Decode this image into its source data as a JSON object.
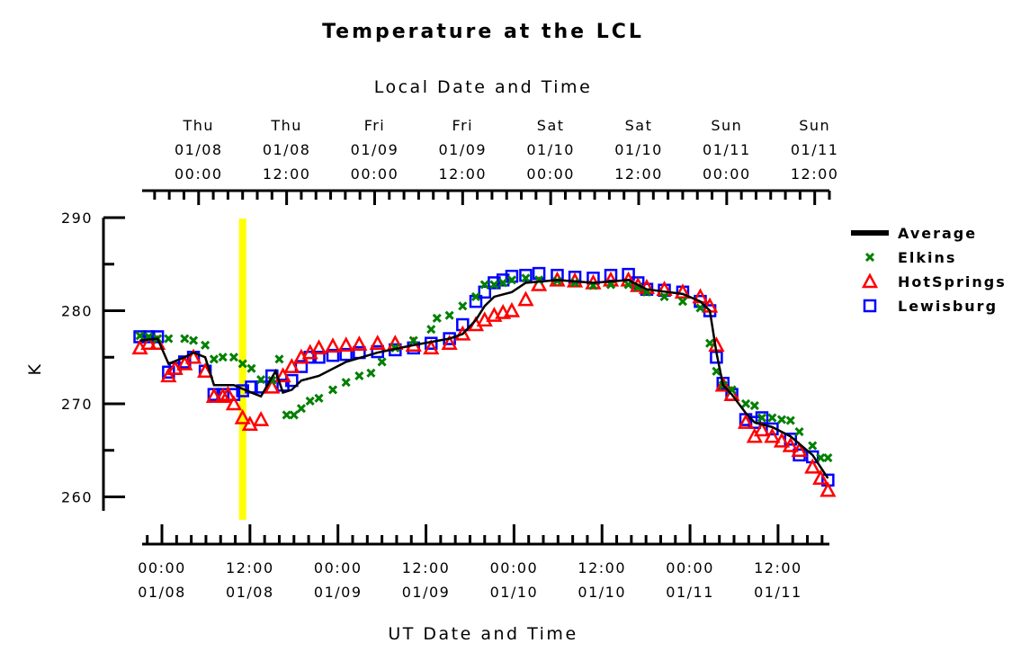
{
  "chart_data": {
    "type": "line",
    "title": "Temperature at the LCL",
    "xlabel": "UT Date and Time",
    "top_xlabel": "Local Date and Time",
    "ylabel": "K",
    "x_units": "hours since 01/08 00:00 UT",
    "xlim": [
      -2.7,
      91
    ],
    "ylim": [
      258.5,
      290
    ],
    "yticks": [
      260,
      270,
      280,
      290
    ],
    "ytick_labels": [
      "260",
      "270",
      "280",
      "290"
    ],
    "bottom_ticks": [
      {
        "x": 0,
        "time": "00:00",
        "date": "01/08"
      },
      {
        "x": 12,
        "time": "12:00",
        "date": "01/08"
      },
      {
        "x": 24,
        "time": "00:00",
        "date": "01/09"
      },
      {
        "x": 36,
        "time": "12:00",
        "date": "01/09"
      },
      {
        "x": 48,
        "time": "00:00",
        "date": "01/10"
      },
      {
        "x": 60,
        "time": "12:00",
        "date": "01/10"
      },
      {
        "x": 72,
        "time": "00:00",
        "date": "01/11"
      },
      {
        "x": 84,
        "time": "12:00",
        "date": "01/11"
      }
    ],
    "top_ticks": [
      {
        "x": 5,
        "day": "Thu",
        "date": "01/08",
        "time": "00:00"
      },
      {
        "x": 17,
        "day": "Thu",
        "date": "01/08",
        "time": "12:00"
      },
      {
        "x": 29,
        "day": "Fri",
        "date": "01/09",
        "time": "00:00"
      },
      {
        "x": 41,
        "day": "Fri",
        "date": "01/09",
        "time": "12:00"
      },
      {
        "x": 53,
        "day": "Sat",
        "date": "01/10",
        "time": "00:00"
      },
      {
        "x": 65,
        "day": "Sat",
        "date": "01/10",
        "time": "12:00"
      },
      {
        "x": 77,
        "day": "Sun",
        "date": "01/11",
        "time": "00:00"
      },
      {
        "x": 89,
        "day": "Sun",
        "date": "01/11",
        "time": "12:00"
      }
    ],
    "highlight_x": 11,
    "highlight_color": "#ffff00",
    "legend_position": "right",
    "series": [
      {
        "name": "Average",
        "marker": "line",
        "color": "#000000",
        "points": [
          [
            -3,
            276.8
          ],
          [
            -0.6,
            277
          ],
          [
            0.9,
            274.3
          ],
          [
            3.1,
            275
          ],
          [
            4.3,
            275.5
          ],
          [
            5.9,
            275
          ],
          [
            7.1,
            272
          ],
          [
            9.8,
            272
          ],
          [
            12.2,
            271.2
          ],
          [
            13.5,
            270.8
          ],
          [
            15.5,
            273.5
          ],
          [
            16.5,
            271.2
          ],
          [
            17.7,
            271.5
          ],
          [
            19,
            272.5
          ],
          [
            21.4,
            273
          ],
          [
            25.1,
            274.5
          ],
          [
            29.4,
            275.5
          ],
          [
            34.3,
            276.3
          ],
          [
            39.2,
            277
          ],
          [
            41,
            277.5
          ],
          [
            42.8,
            279
          ],
          [
            44,
            280.5
          ],
          [
            45.3,
            281.5
          ],
          [
            47.7,
            282
          ],
          [
            49.6,
            283
          ],
          [
            53.9,
            283.3
          ],
          [
            58.8,
            283
          ],
          [
            63.6,
            283.3
          ],
          [
            66.1,
            282.3
          ],
          [
            71,
            281.8
          ],
          [
            73.4,
            281
          ],
          [
            74.7,
            280
          ],
          [
            75.6,
            275.5
          ],
          [
            76.5,
            272
          ],
          [
            77.7,
            271
          ],
          [
            79.6,
            269
          ],
          [
            80.8,
            268
          ],
          [
            83.2,
            267.5
          ],
          [
            85.7,
            266.5
          ],
          [
            88.7,
            264.5
          ],
          [
            90.8,
            262
          ]
        ]
      },
      {
        "name": "Elkins",
        "marker": "x",
        "color": "#008000",
        "points": [
          [
            -3,
            277.3
          ],
          [
            -1.8,
            277.2
          ],
          [
            -0.6,
            277
          ],
          [
            0.9,
            277
          ],
          [
            3.1,
            277
          ],
          [
            4.3,
            276.8
          ],
          [
            5.9,
            276.3
          ],
          [
            7.1,
            274.8
          ],
          [
            8.3,
            275
          ],
          [
            9.8,
            275
          ],
          [
            11,
            274.3
          ],
          [
            12.2,
            273.8
          ],
          [
            13.5,
            272.6
          ],
          [
            15,
            272.5
          ],
          [
            16,
            274.8
          ],
          [
            17,
            268.8
          ],
          [
            18,
            268.8
          ],
          [
            19,
            269.5
          ],
          [
            20.2,
            270.3
          ],
          [
            21.4,
            270.6
          ],
          [
            23.3,
            271.5
          ],
          [
            25.1,
            272.3
          ],
          [
            26.9,
            273
          ],
          [
            28.5,
            273.3
          ],
          [
            30,
            274.5
          ],
          [
            31.8,
            276
          ],
          [
            34.3,
            276.8
          ],
          [
            36.7,
            278
          ],
          [
            37.5,
            279.2
          ],
          [
            39.2,
            279.5
          ],
          [
            41,
            280.5
          ],
          [
            42.8,
            281.5
          ],
          [
            44,
            282.8
          ],
          [
            45.3,
            282.8
          ],
          [
            46.5,
            283
          ],
          [
            47.7,
            283.3
          ],
          [
            49.6,
            283.5
          ],
          [
            51.4,
            283.3
          ],
          [
            53.9,
            283.2
          ],
          [
            56.3,
            283
          ],
          [
            58.8,
            282.7
          ],
          [
            61.2,
            282.8
          ],
          [
            63.6,
            282.8
          ],
          [
            64.9,
            282.5
          ],
          [
            66.1,
            282
          ],
          [
            68.5,
            281.5
          ],
          [
            71,
            281
          ],
          [
            73.4,
            280.3
          ],
          [
            74.7,
            276.5
          ],
          [
            75.6,
            273.5
          ],
          [
            76.5,
            272
          ],
          [
            77.7,
            271.5
          ],
          [
            79.6,
            270
          ],
          [
            80.8,
            269.8
          ],
          [
            81.8,
            268.5
          ],
          [
            83.2,
            268.5
          ],
          [
            84.5,
            268.3
          ],
          [
            85.7,
            268.2
          ],
          [
            86.9,
            267
          ],
          [
            88.7,
            265.5
          ],
          [
            89.8,
            264.2
          ],
          [
            90.8,
            264.2
          ]
        ]
      },
      {
        "name": "HotSprings",
        "marker": "triangle",
        "color": "#ff0000",
        "points": [
          [
            -3,
            276
          ],
          [
            -1.8,
            276.5
          ],
          [
            -0.6,
            276.5
          ],
          [
            0.9,
            273
          ],
          [
            1.8,
            273.8
          ],
          [
            3.1,
            274.3
          ],
          [
            4.3,
            275
          ],
          [
            5.9,
            273.5
          ],
          [
            7.1,
            270.8
          ],
          [
            8.3,
            270.8
          ],
          [
            9,
            271
          ],
          [
            9.8,
            270
          ],
          [
            11,
            268.5
          ],
          [
            12,
            267.8
          ],
          [
            13.5,
            268.3
          ],
          [
            15,
            271.8
          ],
          [
            16.5,
            273
          ],
          [
            17.7,
            274
          ],
          [
            19,
            275
          ],
          [
            20.2,
            275.5
          ],
          [
            21.4,
            276
          ],
          [
            23.3,
            276.2
          ],
          [
            25.1,
            276.3
          ],
          [
            26.9,
            276.4
          ],
          [
            29.4,
            276.5
          ],
          [
            31.8,
            276.5
          ],
          [
            34.3,
            276.3
          ],
          [
            36.7,
            276
          ],
          [
            39.2,
            276.5
          ],
          [
            41,
            277.5
          ],
          [
            42.8,
            278.5
          ],
          [
            44,
            279
          ],
          [
            45.3,
            279.5
          ],
          [
            46.5,
            279.8
          ],
          [
            47.7,
            280
          ],
          [
            49.6,
            281.2
          ],
          [
            51.4,
            282.8
          ],
          [
            53.9,
            283.3
          ],
          [
            56.3,
            283.2
          ],
          [
            58.8,
            283
          ],
          [
            61.2,
            283.3
          ],
          [
            63.6,
            283.3
          ],
          [
            64.9,
            282.7
          ],
          [
            66.1,
            282.5
          ],
          [
            68.5,
            282.3
          ],
          [
            71,
            282
          ],
          [
            73.4,
            281.5
          ],
          [
            74.7,
            280.5
          ],
          [
            75.6,
            276.3
          ],
          [
            76.5,
            272
          ],
          [
            77.7,
            271
          ],
          [
            79.6,
            268
          ],
          [
            80.8,
            266.5
          ],
          [
            81.8,
            267.2
          ],
          [
            83.2,
            266.5
          ],
          [
            84.5,
            266
          ],
          [
            85.7,
            265.5
          ],
          [
            86.9,
            265
          ],
          [
            88.7,
            263.2
          ],
          [
            89.8,
            262
          ],
          [
            90.8,
            260.7
          ]
        ]
      },
      {
        "name": "Lewisburg",
        "marker": "square",
        "color": "#0000ff",
        "points": [
          [
            -3,
            277.2
          ],
          [
            -1.8,
            277.2
          ],
          [
            -0.6,
            277.2
          ],
          [
            0.9,
            273.4
          ],
          [
            1.8,
            273.8
          ],
          [
            3.1,
            274.5
          ],
          [
            4.3,
            275
          ],
          [
            5.9,
            273.5
          ],
          [
            7.1,
            271
          ],
          [
            8.3,
            271
          ],
          [
            9.8,
            271
          ],
          [
            11,
            271.4
          ],
          [
            12.2,
            271.8
          ],
          [
            13.5,
            271.8
          ],
          [
            15,
            273
          ],
          [
            16.5,
            272
          ],
          [
            17.7,
            272.5
          ],
          [
            19,
            274
          ],
          [
            20.2,
            275
          ],
          [
            21.4,
            275
          ],
          [
            23.3,
            275.2
          ],
          [
            25.1,
            275.3
          ],
          [
            26.9,
            275.5
          ],
          [
            29.4,
            275.6
          ],
          [
            31.8,
            275.8
          ],
          [
            34.3,
            276
          ],
          [
            36.7,
            276.5
          ],
          [
            39.2,
            277
          ],
          [
            41,
            278.5
          ],
          [
            42.8,
            281
          ],
          [
            44,
            282
          ],
          [
            45.3,
            283
          ],
          [
            46.5,
            283.3
          ],
          [
            47.7,
            283.7
          ],
          [
            49.6,
            283.8
          ],
          [
            51.4,
            284
          ],
          [
            53.9,
            283.8
          ],
          [
            56.3,
            283.6
          ],
          [
            58.8,
            283.5
          ],
          [
            61.2,
            283.8
          ],
          [
            63.6,
            283.9
          ],
          [
            64.9,
            283
          ],
          [
            66.1,
            282.3
          ],
          [
            68.5,
            282.2
          ],
          [
            71,
            282
          ],
          [
            73.4,
            281
          ],
          [
            74.7,
            280
          ],
          [
            75.6,
            275
          ],
          [
            76.5,
            272.2
          ],
          [
            77.7,
            271
          ],
          [
            79.6,
            268.3
          ],
          [
            80.8,
            268
          ],
          [
            81.8,
            268.5
          ],
          [
            83.2,
            267.3
          ],
          [
            85.7,
            266.2
          ],
          [
            86.9,
            264.5
          ],
          [
            88.7,
            264.3
          ],
          [
            90.8,
            261.8
          ]
        ]
      }
    ]
  }
}
